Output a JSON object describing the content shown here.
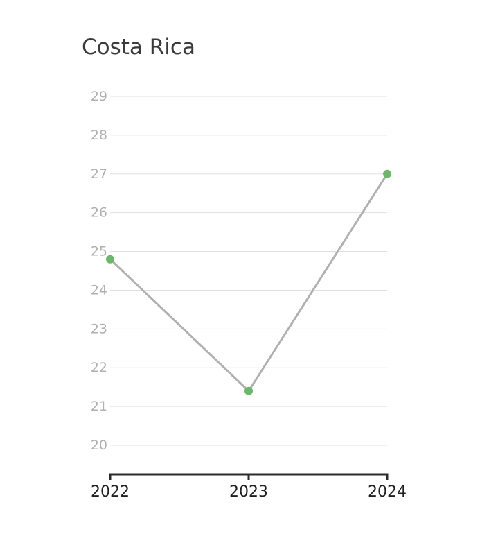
{
  "chart_data": {
    "type": "line",
    "title": "Costa Rica",
    "x": [
      "2022",
      "2023",
      "2024"
    ],
    "series": [
      {
        "values": [
          24.8,
          21.4,
          27.0
        ],
        "line_color": "#b0b0b0",
        "marker_color": "#6bb86b"
      }
    ],
    "y_ticks": [
      20,
      21,
      22,
      23,
      24,
      25,
      26,
      27,
      28,
      29
    ],
    "ylim": [
      20,
      29
    ],
    "xlabel": "",
    "ylabel": "",
    "grid": true,
    "legend": "none"
  }
}
